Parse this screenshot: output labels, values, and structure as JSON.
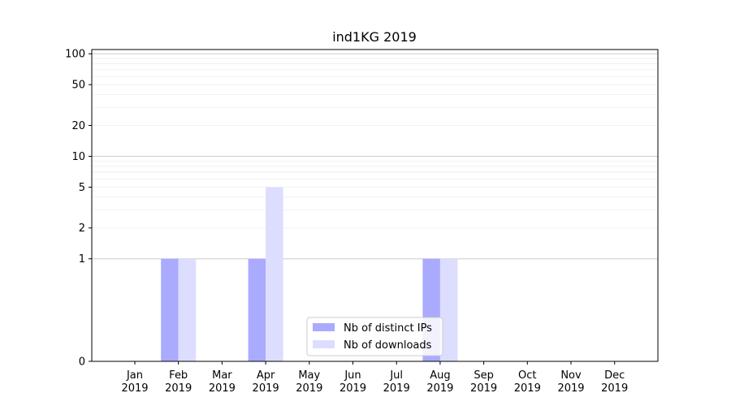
{
  "chart_data": {
    "type": "bar",
    "title": "ind1KG 2019",
    "xlabel": "",
    "ylabel": "",
    "yscale": "symlog",
    "ylim": [
      0,
      110
    ],
    "yticks": [
      0,
      1,
      2,
      5,
      10,
      20,
      50,
      100
    ],
    "grid": true,
    "legend_position": "bottom-center",
    "categories": [
      "Jan\n2019",
      "Feb\n2019",
      "Mar\n2019",
      "Apr\n2019",
      "May\n2019",
      "Jun\n2019",
      "Jul\n2019",
      "Aug\n2019",
      "Sep\n2019",
      "Oct\n2019",
      "Nov\n2019",
      "Dec\n2019"
    ],
    "series": [
      {
        "name": "Nb of distinct IPs",
        "color": "#aaaaff",
        "values": [
          0,
          1,
          0,
          1,
          0,
          0,
          0,
          1,
          0,
          0,
          0,
          0
        ]
      },
      {
        "name": "Nb of downloads",
        "color": "#ddddff",
        "values": [
          0,
          1,
          0,
          5,
          0,
          0,
          0,
          1,
          0,
          0,
          0,
          0
        ]
      }
    ]
  }
}
